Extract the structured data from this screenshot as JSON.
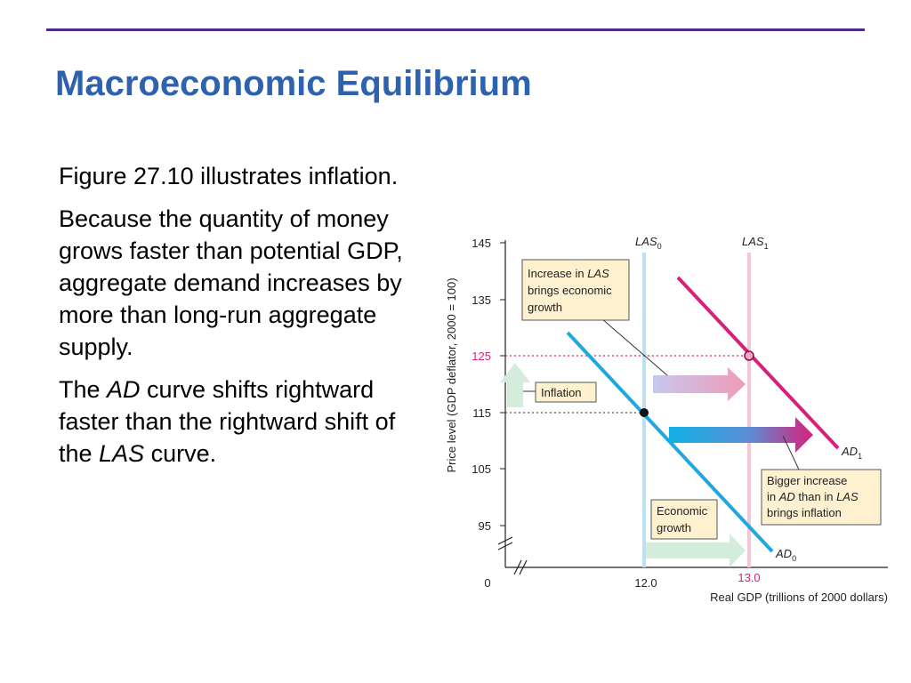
{
  "slide": {
    "title": "Macroeconomic Equilibrium",
    "paragraph1": "Figure 27.10 illustrates inflation.",
    "paragraph2": "Because the quantity of money grows faster than potential GDP, aggregate demand increases by more than long-run aggregate supply.",
    "paragraph3": {
      "pre": "The ",
      "ad": "AD",
      "mid": " curve shifts rightward faster than the rightward shift of the ",
      "las": "LAS",
      "post": " curve."
    }
  },
  "diagram": {
    "y_axis_label": "Price level (GDP deflator, 2000 = 100)",
    "x_axis_label": "Real GDP (trillions of 2000 dollars)",
    "origin_label": "0",
    "y_ticks": [
      "145",
      "135",
      "125",
      "115",
      "105",
      "95"
    ],
    "x_ticks": [
      "12.0",
      "13.0"
    ],
    "las0": {
      "base": "LAS",
      "sub": "0"
    },
    "las1": {
      "base": "LAS",
      "sub": "1"
    },
    "ad0": {
      "base": "AD",
      "sub": "0"
    },
    "ad1": {
      "base": "AD",
      "sub": "1"
    },
    "callout_las": [
      "Increase in ",
      "LAS",
      "brings economic",
      "growth"
    ],
    "callout_inflation": "Inflation",
    "callout_ad": [
      "Bigger increase",
      "in ",
      "AD",
      " than in ",
      "LAS",
      "brings inflation"
    ],
    "callout_growth": [
      "Economic",
      "growth"
    ],
    "colors": {
      "title": "#2f62ae",
      "rule": "#4b2a8a",
      "ad0": "#1fa8e0",
      "ad1": "#d8207a",
      "las0": "#bddff3",
      "las1": "#f7c5d8",
      "callout_bg": "#fdf1cf",
      "highlight": "#d8207a"
    }
  }
}
